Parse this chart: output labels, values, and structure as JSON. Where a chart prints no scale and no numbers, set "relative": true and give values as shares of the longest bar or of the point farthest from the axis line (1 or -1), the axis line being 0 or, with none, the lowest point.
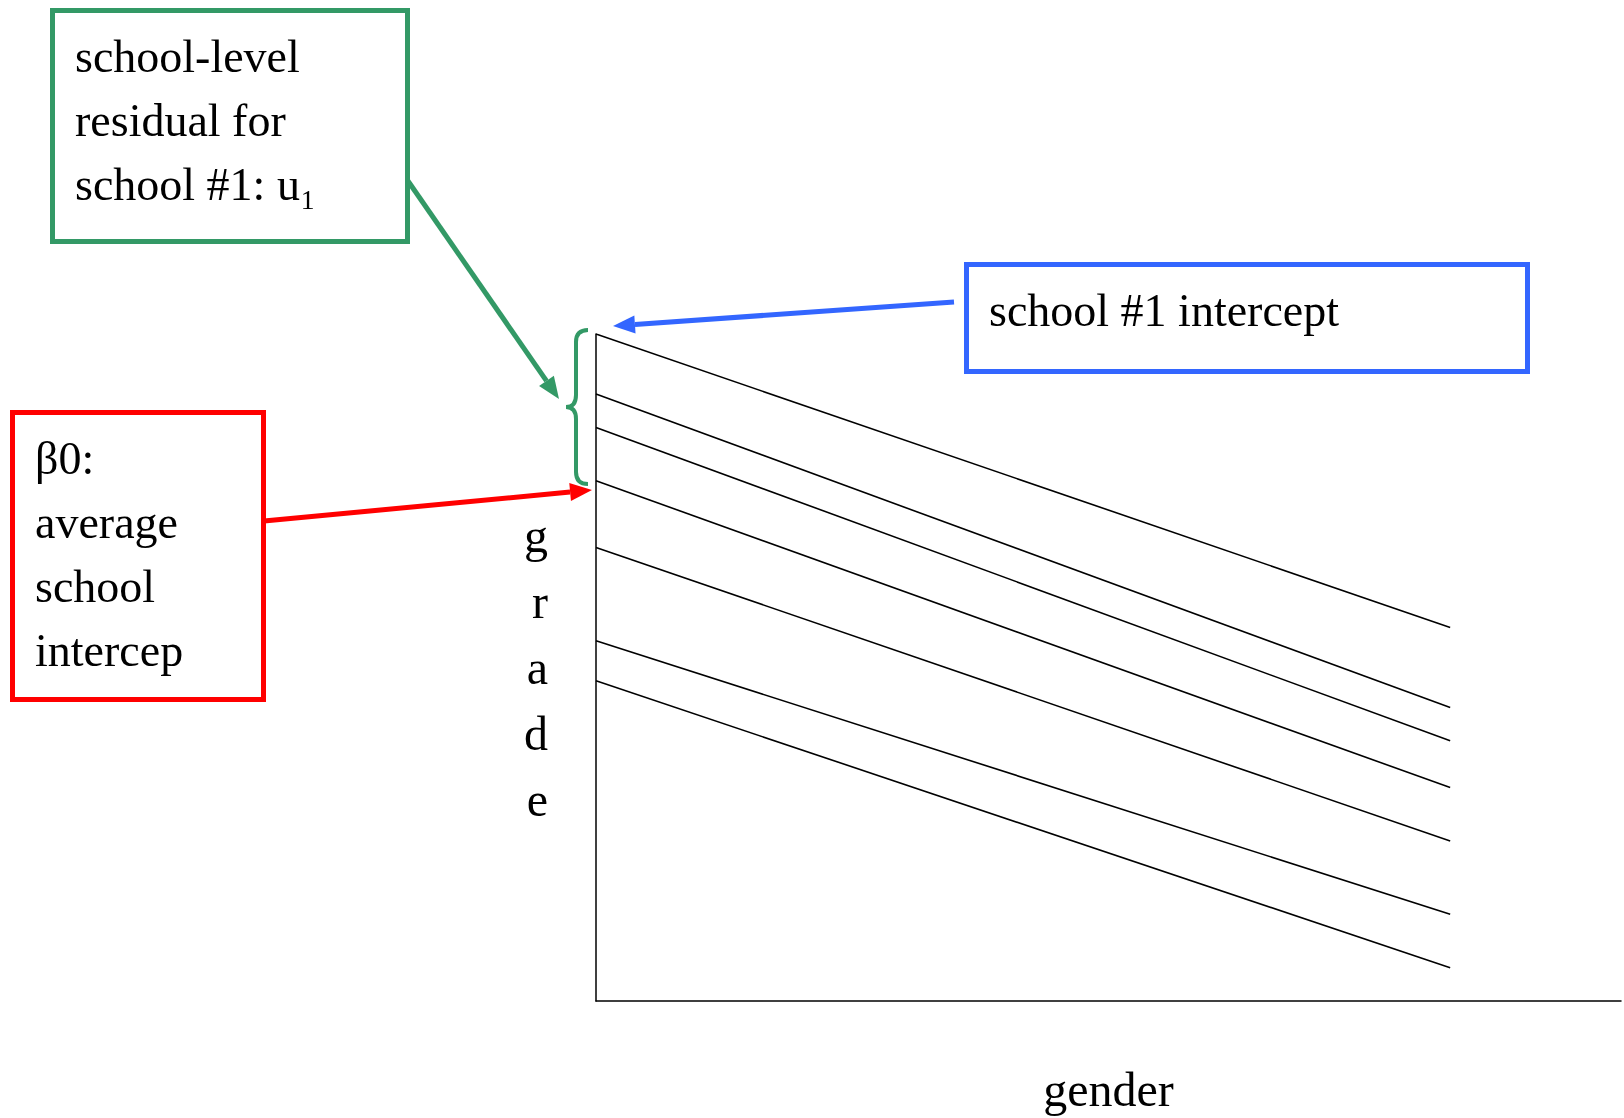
{
  "chart_data": {
    "type": "line",
    "relative": true,
    "xlabel": "gender",
    "ylabel": "grade",
    "categories": [
      null,
      null,
      null,
      null,
      null,
      null,
      null
    ],
    "grid": false,
    "marker": "none",
    "line_style": "solid",
    "series": [
      {
        "color": "#000000",
        "values": [
          1,
          null,
          null,
          null,
          null,
          0.56,
          null
        ]
      },
      {
        "color": "#000000",
        "values": [
          0.91,
          null,
          null,
          null,
          null,
          0.44,
          null
        ]
      },
      {
        "color": "#000000",
        "values": [
          0.86,
          null,
          null,
          null,
          null,
          0.39,
          null
        ]
      },
      {
        "color": "#000000",
        "values": [
          0.78,
          null,
          null,
          null,
          null,
          0.32,
          null
        ]
      },
      {
        "color": "#000000",
        "values": [
          0.68,
          null,
          null,
          null,
          null,
          0.24,
          null
        ]
      },
      {
        "color": "#000000",
        "values": [
          0.54,
          null,
          null,
          null,
          null,
          0.13,
          null
        ]
      },
      {
        "color": "#000000",
        "values": [
          0.48,
          null,
          null,
          null,
          null,
          0.05,
          null
        ]
      }
    ],
    "annotations": [
      "school-level residual for school #1: u₁",
      "school #1 intercept",
      "β0: average school intercep"
    ]
  }
}
